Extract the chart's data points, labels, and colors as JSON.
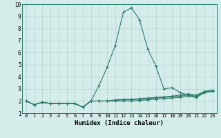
{
  "x": [
    0,
    1,
    2,
    3,
    4,
    5,
    6,
    7,
    8,
    9,
    10,
    11,
    12,
    13,
    14,
    15,
    16,
    17,
    18,
    19,
    20,
    21,
    22,
    23
  ],
  "y_main": [
    2.0,
    1.7,
    1.9,
    1.8,
    1.8,
    1.8,
    1.8,
    1.5,
    2.0,
    3.3,
    4.8,
    6.6,
    9.35,
    9.7,
    8.7,
    6.3,
    4.9,
    3.0,
    3.1,
    2.7,
    2.5,
    2.3,
    2.7,
    2.8
  ],
  "y_flat1": [
    2.0,
    1.7,
    1.9,
    1.8,
    1.8,
    1.8,
    1.8,
    1.5,
    2.0,
    2.0,
    2.0,
    2.0,
    2.0,
    2.0,
    2.05,
    2.1,
    2.15,
    2.2,
    2.25,
    2.3,
    2.4,
    2.3,
    2.7,
    2.8
  ],
  "y_flat2": [
    2.0,
    1.7,
    1.9,
    1.8,
    1.8,
    1.8,
    1.8,
    1.5,
    2.0,
    2.0,
    2.0,
    2.05,
    2.1,
    2.1,
    2.15,
    2.2,
    2.25,
    2.3,
    2.35,
    2.4,
    2.5,
    2.4,
    2.75,
    2.85
  ],
  "y_flat3": [
    2.0,
    1.7,
    1.9,
    1.8,
    1.8,
    1.8,
    1.8,
    1.5,
    2.0,
    2.0,
    2.0,
    2.1,
    2.15,
    2.15,
    2.2,
    2.25,
    2.3,
    2.35,
    2.4,
    2.5,
    2.6,
    2.5,
    2.8,
    2.9
  ],
  "line_color": "#2a7a6a",
  "bg_color": "#d4ecea",
  "grid_color": "#b8d4d0",
  "xlabel": "Humidex (Indice chaleur)",
  "ylim": [
    1,
    10
  ],
  "xlim": [
    -0.5,
    23.5
  ],
  "yticks": [
    1,
    2,
    3,
    4,
    5,
    6,
    7,
    8,
    9,
    10
  ],
  "xticks": [
    0,
    1,
    2,
    3,
    4,
    5,
    6,
    7,
    8,
    9,
    10,
    11,
    12,
    13,
    14,
    15,
    16,
    17,
    18,
    19,
    20,
    21,
    22,
    23
  ],
  "tick_fontsize": 5.0,
  "xlabel_fontsize": 6.5,
  "linewidth": 0.8,
  "markersize": 2.5
}
